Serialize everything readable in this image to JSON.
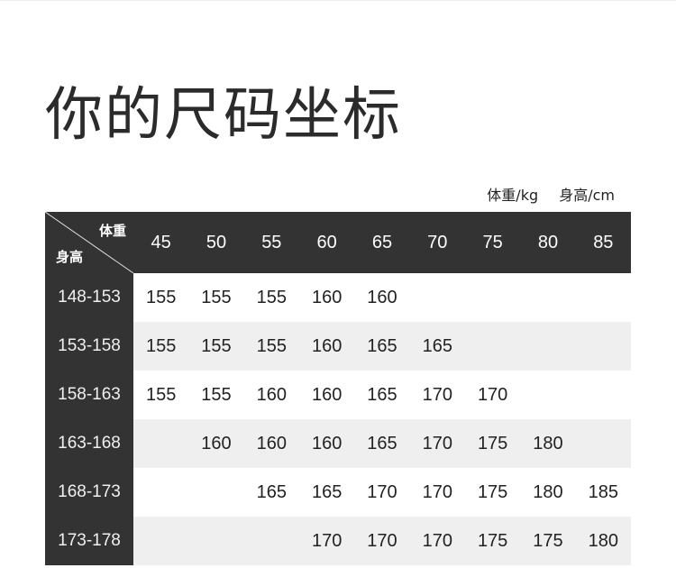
{
  "title": "你的尺码坐标",
  "units": {
    "weight": "体重/kg",
    "height": "身高/cm"
  },
  "table": {
    "corner_weight": "体重",
    "corner_height": "身高",
    "weights": [
      "45",
      "50",
      "55",
      "60",
      "65",
      "70",
      "75",
      "80",
      "85"
    ],
    "rows": [
      {
        "height": "148-153",
        "cells": [
          "155",
          "155",
          "155",
          "160",
          "160",
          "",
          "",
          "",
          ""
        ]
      },
      {
        "height": "153-158",
        "cells": [
          "155",
          "155",
          "155",
          "160",
          "165",
          "165",
          "",
          "",
          ""
        ]
      },
      {
        "height": "158-163",
        "cells": [
          "155",
          "155",
          "160",
          "160",
          "165",
          "170",
          "170",
          "",
          ""
        ]
      },
      {
        "height": "163-168",
        "cells": [
          "",
          "160",
          "160",
          "160",
          "165",
          "170",
          "175",
          "180",
          ""
        ]
      },
      {
        "height": "168-173",
        "cells": [
          "",
          "",
          "165",
          "165",
          "170",
          "170",
          "175",
          "180",
          "185"
        ]
      },
      {
        "height": "173-178",
        "cells": [
          "",
          "",
          "",
          "170",
          "170",
          "170",
          "175",
          "175",
          "180"
        ]
      }
    ]
  },
  "colors": {
    "header_bg": "#333333",
    "stripe": "#efefef"
  }
}
